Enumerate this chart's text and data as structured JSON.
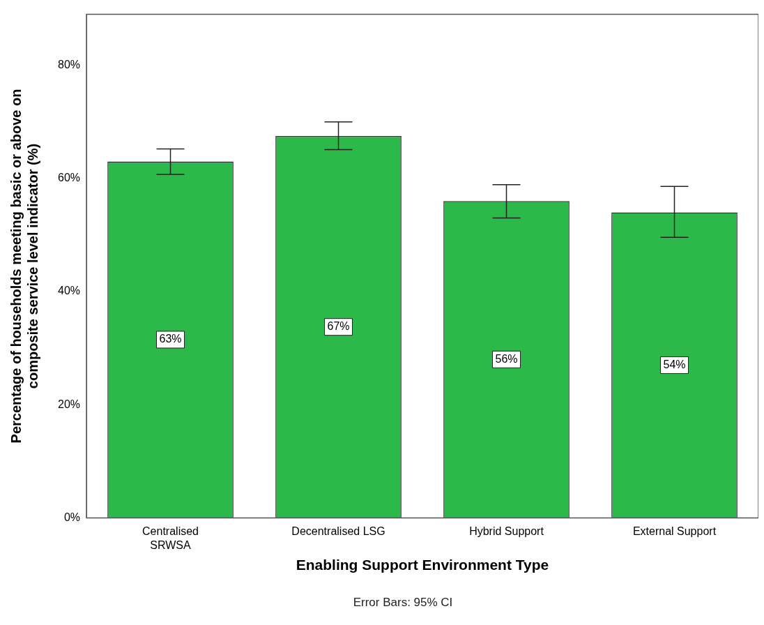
{
  "chart_data": {
    "type": "bar",
    "xlabel": "Enabling Support Environment Type",
    "ylabel": "Percentage of households meeting basic or above on\ncomposite service level indicator (%)",
    "categories": [
      "Centralised\nSRWSA",
      "Decentralised LSG",
      "Hybrid Support",
      "External Support"
    ],
    "values": [
      63,
      67.5,
      56,
      54
    ],
    "value_labels": [
      "63%",
      "67%",
      "56%",
      "54%"
    ],
    "errors": [
      [
        60.7,
        65.2
      ],
      [
        65.1,
        70.0
      ],
      [
        53.0,
        58.9
      ],
      [
        49.6,
        58.6
      ]
    ],
    "color": "#2db84a",
    "grid": false,
    "legend": false,
    "ylim": [
      0,
      89
    ],
    "yticks": [
      {
        "value": 0,
        "label": "0%"
      },
      {
        "value": 20,
        "label": "20%"
      },
      {
        "value": 40,
        "label": "40%"
      },
      {
        "value": 60,
        "label": "60%"
      },
      {
        "value": 80,
        "label": "80%"
      }
    ],
    "annotations": [
      "Error Bars: 95% CI"
    ]
  }
}
